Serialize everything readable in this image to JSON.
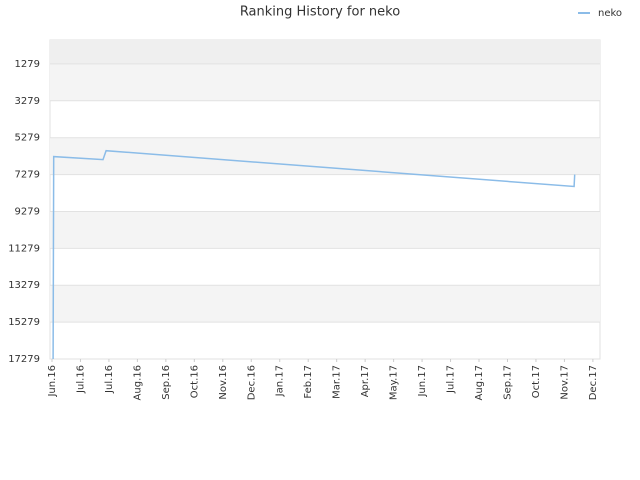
{
  "chart_data": {
    "type": "line",
    "title": "Ranking History for neko",
    "series": [
      {
        "name": "neko",
        "color": "#8bbce8",
        "x": [
          0.04,
          0.06,
          1.79,
          1.9,
          18.34,
          18.36
        ],
        "values": [
          17279,
          6306,
          6468,
          5982,
          7927,
          7279
        ]
      }
    ],
    "xlim": [
      -0.07,
      19.25
    ],
    "xticks": [
      {
        "value": 0,
        "label": "Jun.16"
      },
      {
        "value": 1,
        "label": "Jul.16"
      },
      {
        "value": 2,
        "label": "Jul.16"
      },
      {
        "value": 3,
        "label": "Aug.16"
      },
      {
        "value": 4,
        "label": "Sep.16"
      },
      {
        "value": 5,
        "label": "Oct.16"
      },
      {
        "value": 6,
        "label": "Nov.16"
      },
      {
        "value": 7,
        "label": "Dec.16"
      },
      {
        "value": 8,
        "label": "Jan.17"
      },
      {
        "value": 9,
        "label": "Feb.17"
      },
      {
        "value": 10,
        "label": "Mar.17"
      },
      {
        "value": 11,
        "label": "Apr.17"
      },
      {
        "value": 12,
        "label": "May.17"
      },
      {
        "value": 13,
        "label": "Jun.17"
      },
      {
        "value": 14,
        "label": "Jul.17"
      },
      {
        "value": 15,
        "label": "Aug.17"
      },
      {
        "value": 16,
        "label": "Sep.17"
      },
      {
        "value": 17,
        "label": "Oct.17"
      },
      {
        "value": 18,
        "label": "Nov.17"
      },
      {
        "value": 19,
        "label": "Dec.17"
      }
    ],
    "ylim": [
      17279,
      -18
    ],
    "yticks": [
      1279,
      3279,
      5279,
      7279,
      9279,
      11279,
      13279,
      15279,
      17279
    ],
    "grid": true,
    "legend": "top-right"
  }
}
